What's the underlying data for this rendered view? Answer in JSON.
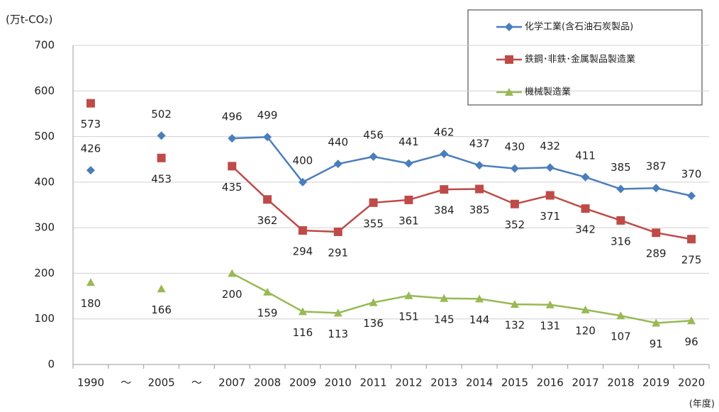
{
  "chart_data": {
    "type": "line",
    "y_axis_label": "(万t-CO₂)",
    "x_axis_label": "(年度)",
    "categories": [
      "1990",
      "～",
      "2005",
      "～",
      "2007",
      "2008",
      "2009",
      "2010",
      "2011",
      "2012",
      "2013",
      "2014",
      "2015",
      "2016",
      "2017",
      "2018",
      "2019",
      "2020"
    ],
    "series": [
      {
        "name": "化学工業(含石油石炭製品)",
        "color": "#4a7ebb",
        "marker": "diamond",
        "label_position": "above",
        "values": [
          426,
          null,
          502,
          null,
          496,
          499,
          400,
          440,
          456,
          441,
          462,
          437,
          430,
          432,
          411,
          385,
          387,
          370
        ]
      },
      {
        "name": "鉄鋼･非鉄･金属製品製造業",
        "color": "#be4b48",
        "marker": "square",
        "label_position": "below",
        "values": [
          573,
          null,
          453,
          null,
          435,
          362,
          294,
          291,
          355,
          361,
          384,
          385,
          352,
          371,
          342,
          316,
          289,
          275
        ]
      },
      {
        "name": "機械製造業",
        "color": "#98b954",
        "marker": "triangle",
        "label_position": "below",
        "values": [
          180,
          null,
          166,
          null,
          200,
          159,
          116,
          113,
          136,
          151,
          145,
          144,
          132,
          131,
          120,
          107,
          91,
          96
        ]
      }
    ],
    "ylim": [
      0,
      700
    ],
    "yticks": [
      0,
      100,
      200,
      300,
      400,
      500,
      600,
      700
    ],
    "grid": true
  }
}
